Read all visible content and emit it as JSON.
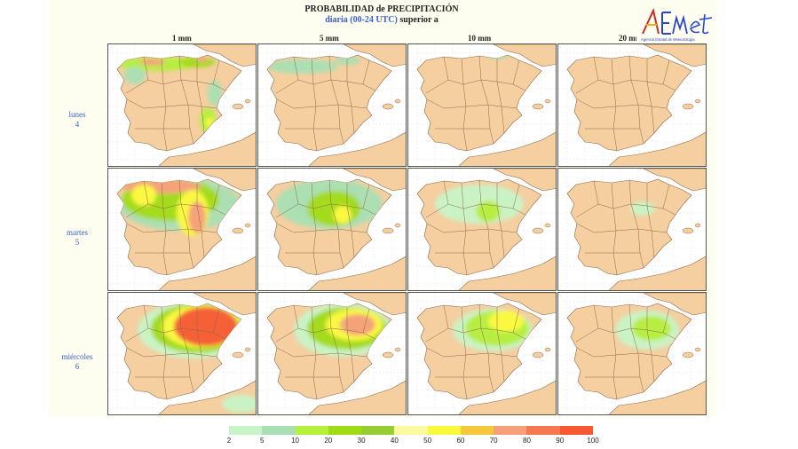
{
  "header": {
    "title": "PROBABILIDAD de PRECIPITACIÓN",
    "subtitle_colored": "diaria (00-24 UTC)",
    "subtitle_rest": " superior a"
  },
  "logo": {
    "text": "AEMet",
    "tagline": "Agencia Estatal de Meteorología"
  },
  "columns": [
    "1 mm",
    "5 mm",
    "10 mm",
    "20 mm"
  ],
  "rows": [
    {
      "day": "lunes",
      "num": "4"
    },
    {
      "day": "martes",
      "num": "5"
    },
    {
      "day": "miércoles",
      "num": "6"
    }
  ],
  "legend": {
    "ticks": [
      "2",
      "5",
      "10",
      "20",
      "30",
      "40",
      "50",
      "60",
      "70",
      "80",
      "90",
      "100"
    ],
    "colors": [
      "#c8f5c8",
      "#a8e0b4",
      "#b4f03c",
      "#a0dc14",
      "#96cd32",
      "#fafaa0",
      "#fafa3c",
      "#f5c83c",
      "#f5a078",
      "#f57850",
      "#f55a32"
    ]
  },
  "map_colors": {
    "land": "#f5cfa0",
    "sea": "#ffffff",
    "border": "#8a6a4a"
  }
}
